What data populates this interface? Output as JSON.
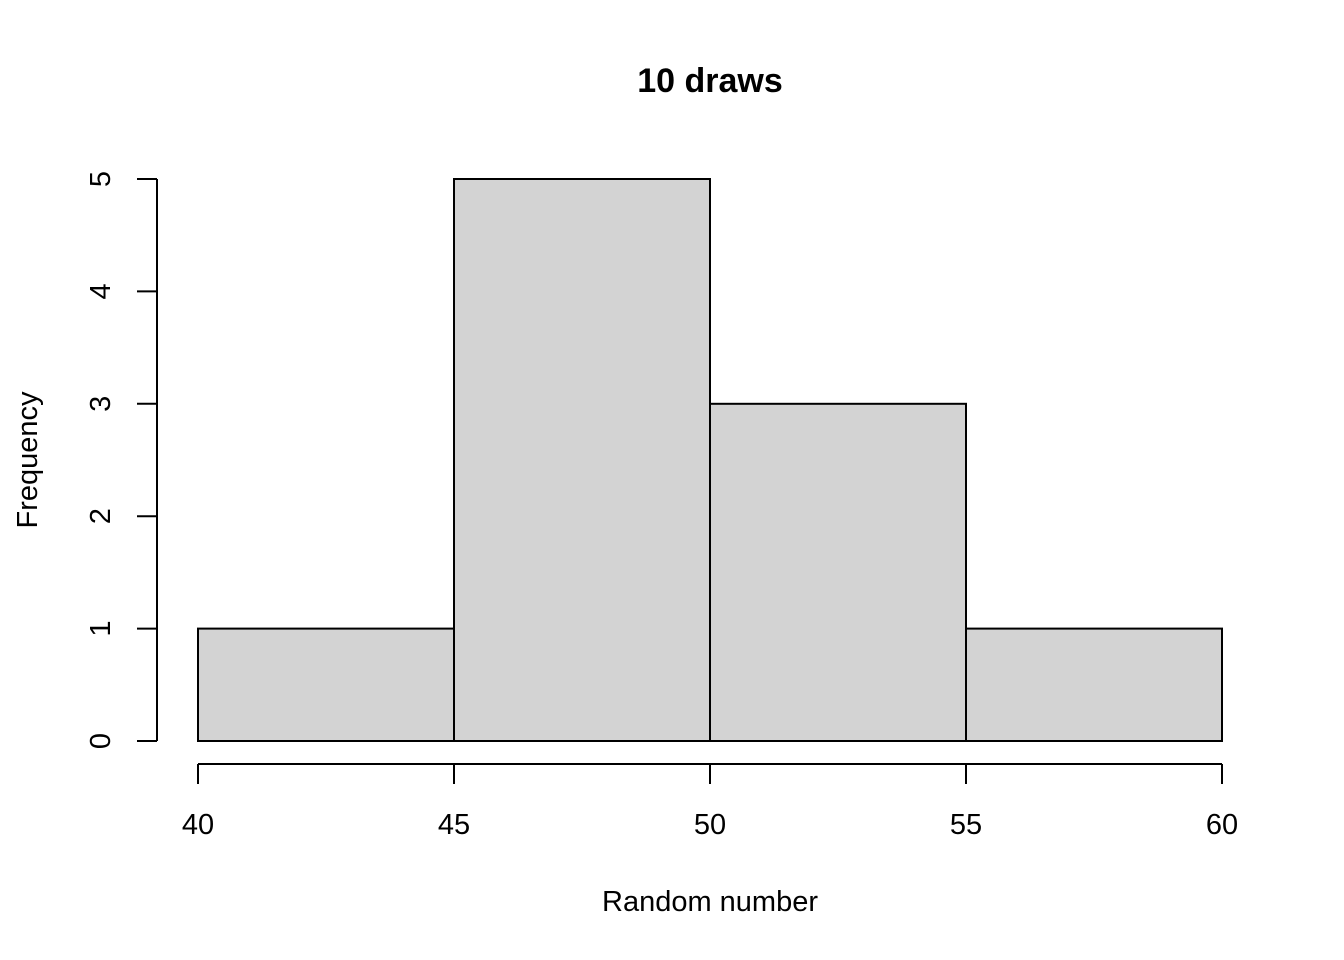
{
  "chart_data": {
    "type": "histogram",
    "title": "10 draws",
    "xlabel": "Random number",
    "ylabel": "Frequency",
    "bins": [
      {
        "start": 40,
        "end": 45,
        "count": 1
      },
      {
        "start": 45,
        "end": 50,
        "count": 5
      },
      {
        "start": 50,
        "end": 55,
        "count": 3
      },
      {
        "start": 55,
        "end": 60,
        "count": 1
      }
    ],
    "xlim": [
      40,
      60
    ],
    "ylim": [
      0,
      5
    ],
    "x_ticks": [
      40,
      45,
      50,
      55,
      60
    ],
    "y_ticks": [
      0,
      1,
      2,
      3,
      4,
      5
    ],
    "colors": {
      "bar_fill": "#d3d3d3",
      "bar_stroke": "#000000"
    }
  }
}
